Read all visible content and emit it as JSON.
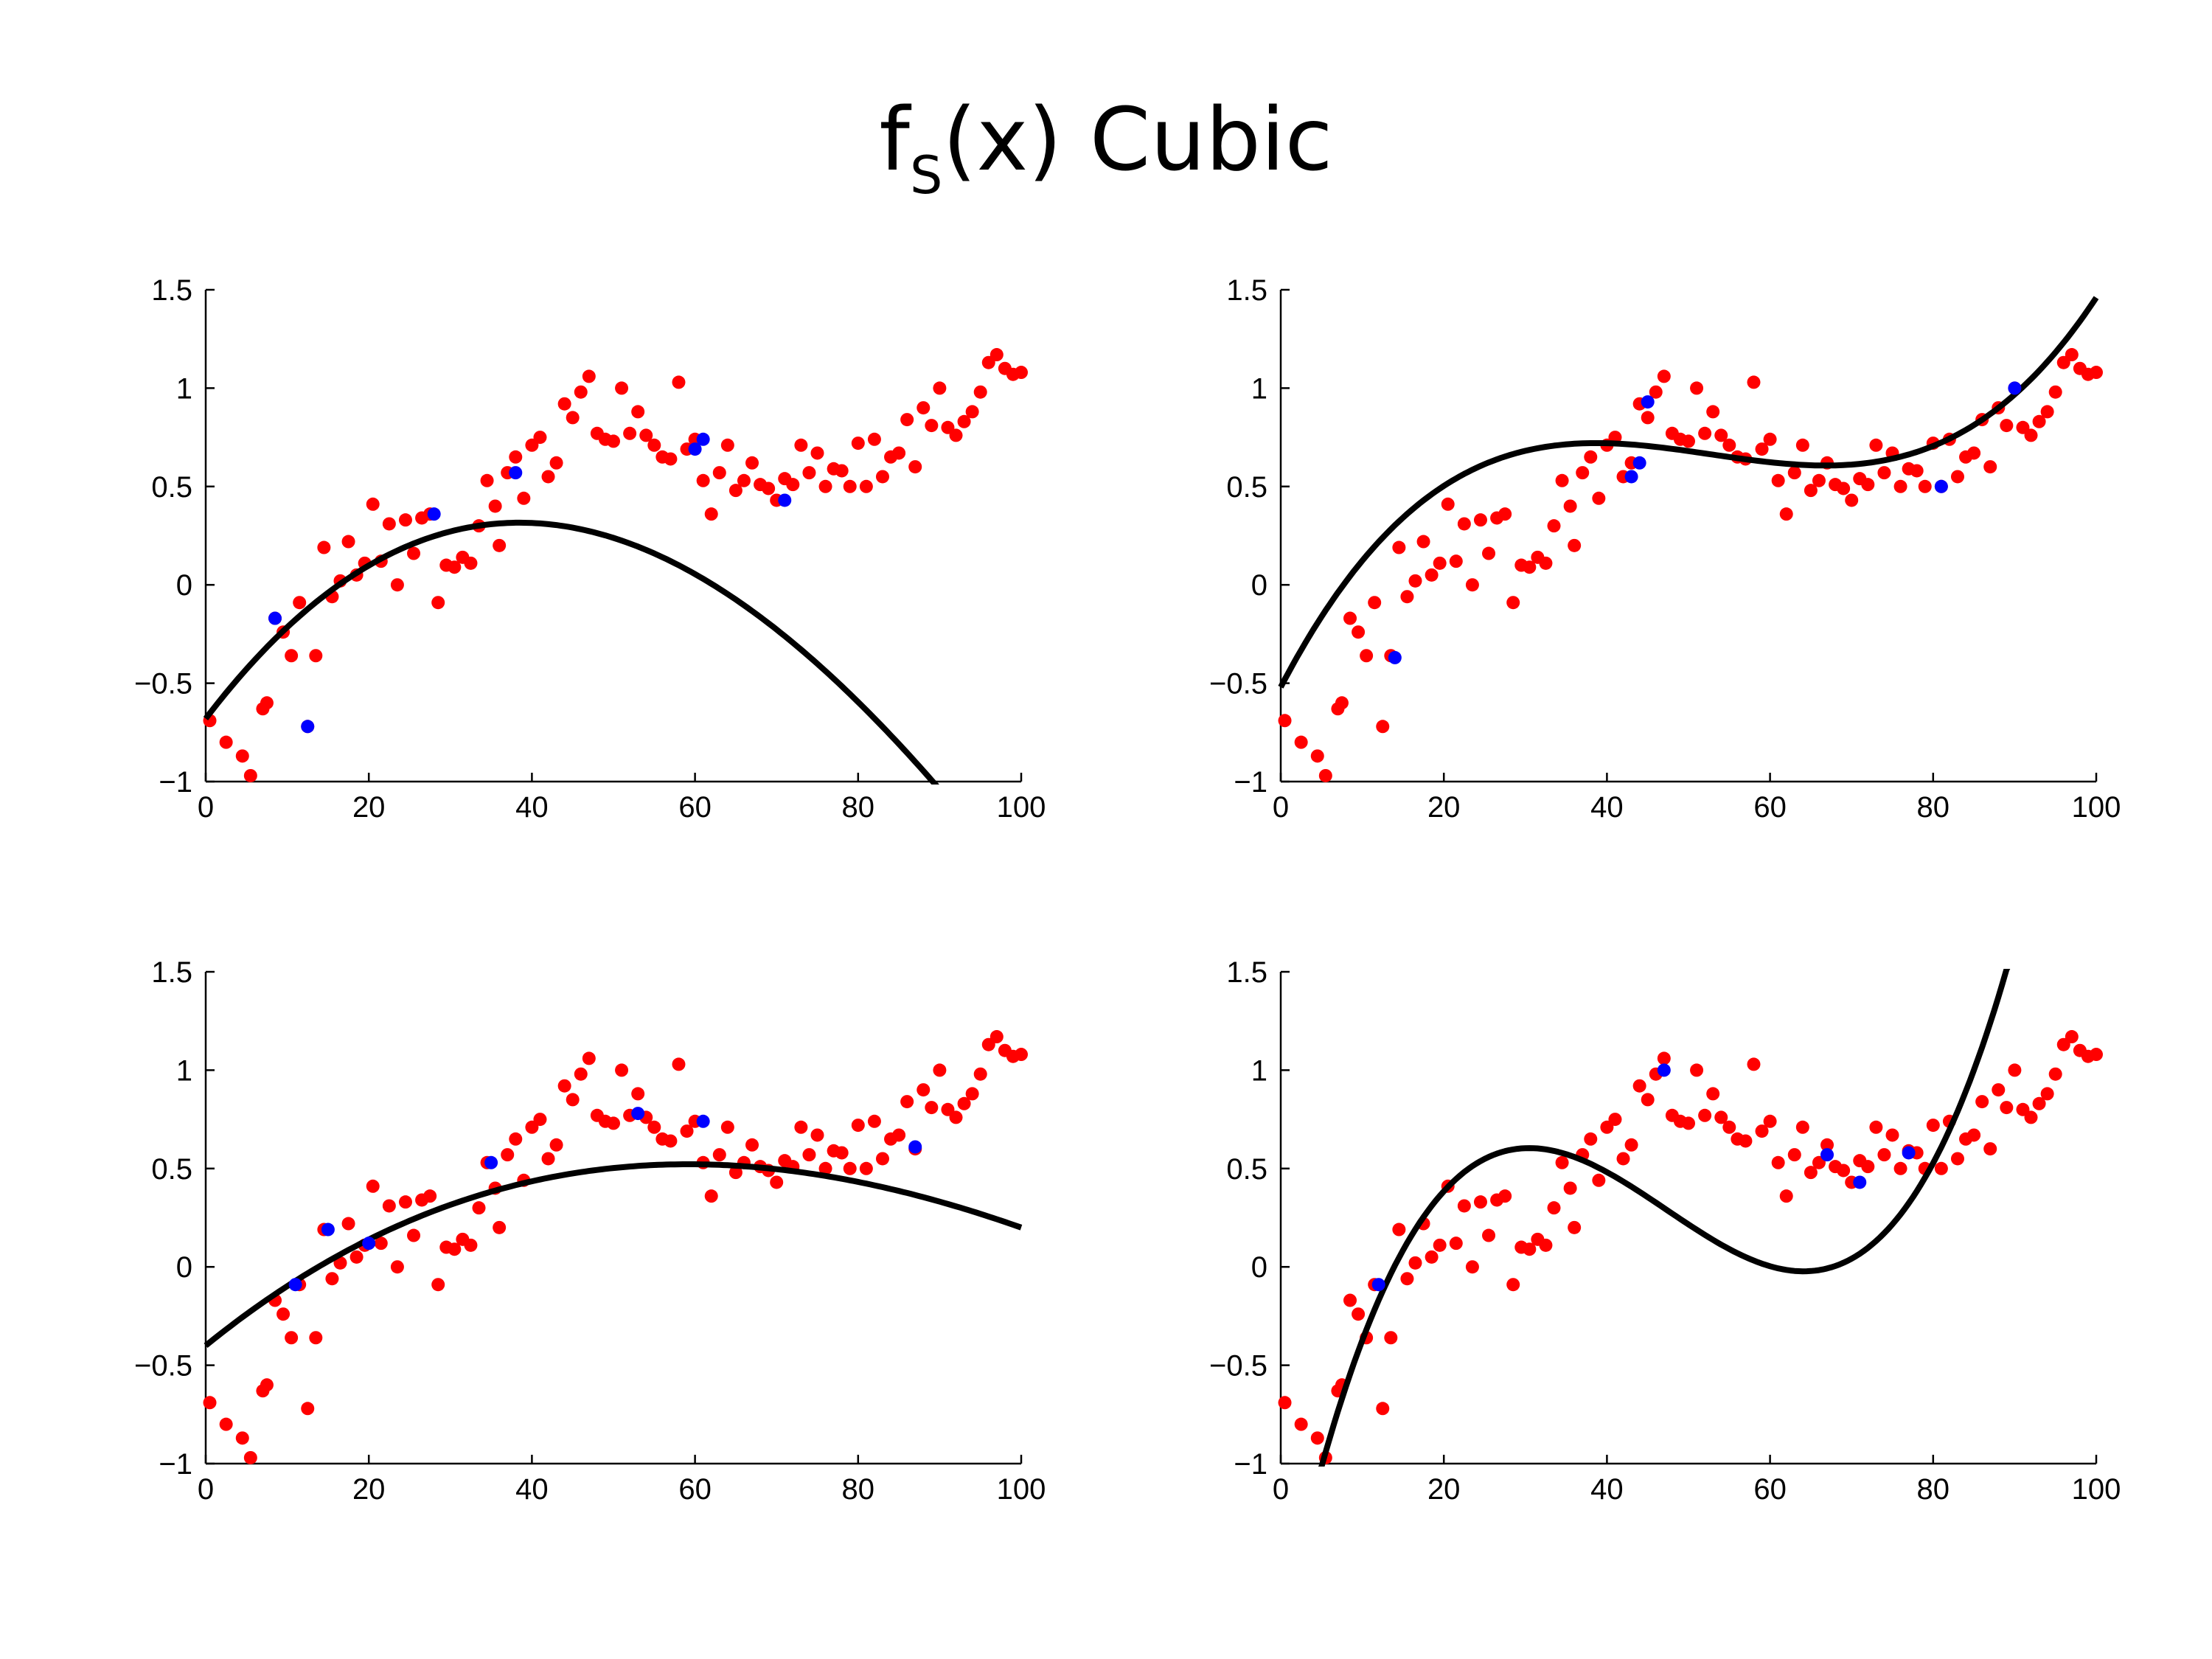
{
  "title": {
    "prefix": "f",
    "subscript": "S",
    "suffix": "(x) Cubic"
  },
  "colors": {
    "data": "#ff0000",
    "sample": "#0000ff",
    "curve": "#000000"
  },
  "chart_data": [
    {
      "type": "scatter",
      "xlim": [
        0,
        100
      ],
      "ylim": [
        -1,
        1.5
      ],
      "xticks": [
        0,
        20,
        40,
        60,
        80,
        100
      ],
      "yticks": [
        -1,
        -0.5,
        0,
        0.5,
        1,
        1.5
      ],
      "xtick_labels": [
        "0",
        "20",
        "40",
        "60",
        "80",
        "100"
      ],
      "ytick_labels": [
        "−1",
        "−0.5",
        "0",
        "0.5",
        "1",
        "1.5"
      ],
      "grid": false,
      "sample_points": [
        [
          8.5,
          -0.17
        ],
        [
          12.5,
          -0.72
        ],
        [
          28,
          0.36
        ],
        [
          38,
          0.57
        ],
        [
          60,
          0.69
        ],
        [
          61,
          0.74
        ],
        [
          71,
          0.43
        ]
      ],
      "fit": {
        "type": "cubic",
        "coeffs": [
          1.79e-06,
          -0.00081,
          0.0544,
          -0.68
        ]
      }
    },
    {
      "type": "scatter",
      "xlim": [
        0,
        100
      ],
      "ylim": [
        -1,
        1.5
      ],
      "xticks": [
        0,
        20,
        40,
        60,
        80,
        100
      ],
      "yticks": [
        -1,
        -0.5,
        0,
        0.5,
        1,
        1.5
      ],
      "xtick_labels": [
        "0",
        "20",
        "40",
        "60",
        "80",
        "100"
      ],
      "ytick_labels": [
        "−1",
        "−0.5",
        "0",
        "0.5",
        "1",
        "1.5"
      ],
      "grid": false,
      "sample_points": [
        [
          14,
          -0.37
        ],
        [
          43,
          0.55
        ],
        [
          44,
          0.62
        ],
        [
          45,
          0.93
        ],
        [
          81,
          0.5
        ],
        [
          90,
          1.0
        ]
      ],
      "fit": {
        "type": "cubic",
        "coeffs": [
          1.026e-05,
          -0.001623,
          0.0795,
          -0.52
        ]
      }
    },
    {
      "type": "scatter",
      "xlim": [
        0,
        100
      ],
      "ylim": [
        -1,
        1.5
      ],
      "xticks": [
        0,
        20,
        40,
        60,
        80,
        100
      ],
      "yticks": [
        -1,
        -0.5,
        0,
        0.5,
        1,
        1.5
      ],
      "xtick_labels": [
        "0",
        "20",
        "40",
        "60",
        "80",
        "100"
      ],
      "ytick_labels": [
        "−1",
        "−0.5",
        "0",
        "0.5",
        "1",
        "1.5"
      ],
      "grid": false,
      "sample_points": [
        [
          11,
          -0.09
        ],
        [
          15,
          0.19
        ],
        [
          20,
          0.12
        ],
        [
          35,
          0.53
        ],
        [
          53,
          0.78
        ],
        [
          61,
          0.74
        ],
        [
          87,
          0.61
        ]
      ],
      "fit": {
        "type": "cubic",
        "coeffs": [
          7e-07,
          -0.000346,
          0.0336,
          -0.4
        ]
      }
    },
    {
      "type": "scatter",
      "xlim": [
        0,
        100
      ],
      "ylim": [
        -1,
        1.5
      ],
      "xticks": [
        0,
        20,
        40,
        60,
        80,
        100
      ],
      "yticks": [
        -1,
        -0.5,
        0,
        0.5,
        1,
        1.5
      ],
      "xtick_labels": [
        "0",
        "20",
        "40",
        "60",
        "80",
        "100"
      ],
      "ytick_labels": [
        "−1",
        "−0.5",
        "0",
        "0.5",
        "1",
        "1.5"
      ],
      "grid": false,
      "sample_points": [
        [
          12,
          -0.09
        ],
        [
          47,
          1.0
        ],
        [
          67,
          0.57
        ],
        [
          71,
          0.43
        ],
        [
          77,
          0.58
        ]
      ],
      "fit": {
        "type": "cubic",
        "coeffs": [
          3.288e-05,
          -0.004665,
          0.1927,
          -1.8667
        ]
      }
    }
  ],
  "observed_data": [
    [
      0.5,
      -0.69
    ],
    [
      2.5,
      -0.8
    ],
    [
      4.5,
      -0.87
    ],
    [
      5.5,
      -0.97
    ],
    [
      7,
      -0.63
    ],
    [
      7.5,
      -0.6
    ],
    [
      8.5,
      -0.17
    ],
    [
      9.5,
      -0.24
    ],
    [
      10.5,
      -0.36
    ],
    [
      11.5,
      -0.09
    ],
    [
      12.5,
      -0.72
    ],
    [
      13.5,
      -0.36
    ],
    [
      14.5,
      0.19
    ],
    [
      15.5,
      -0.06
    ],
    [
      16.5,
      0.02
    ],
    [
      17.5,
      0.22
    ],
    [
      18.5,
      0.05
    ],
    [
      19.5,
      0.11
    ],
    [
      20.5,
      0.41
    ],
    [
      21.5,
      0.12
    ],
    [
      22.5,
      0.31
    ],
    [
      23.5,
      0.0
    ],
    [
      24.5,
      0.33
    ],
    [
      25.5,
      0.16
    ],
    [
      26.5,
      0.34
    ],
    [
      27.5,
      0.36
    ],
    [
      28.5,
      -0.09
    ],
    [
      29.5,
      0.1
    ],
    [
      30.5,
      0.09
    ],
    [
      31.5,
      0.14
    ],
    [
      32.5,
      0.11
    ],
    [
      33.5,
      0.3
    ],
    [
      34.5,
      0.53
    ],
    [
      35.5,
      0.4
    ],
    [
      36,
      0.2
    ],
    [
      37,
      0.57
    ],
    [
      38,
      0.65
    ],
    [
      39,
      0.44
    ],
    [
      40,
      0.71
    ],
    [
      41,
      0.75
    ],
    [
      42,
      0.55
    ],
    [
      43,
      0.62
    ],
    [
      44,
      0.92
    ],
    [
      45,
      0.85
    ],
    [
      46,
      0.98
    ],
    [
      47,
      1.06
    ],
    [
      48,
      0.77
    ],
    [
      49,
      0.74
    ],
    [
      50,
      0.73
    ],
    [
      51,
      1.0
    ],
    [
      52,
      0.77
    ],
    [
      53,
      0.88
    ],
    [
      54,
      0.76
    ],
    [
      55,
      0.71
    ],
    [
      56,
      0.65
    ],
    [
      57,
      0.64
    ],
    [
      58,
      1.03
    ],
    [
      59,
      0.69
    ],
    [
      60,
      0.74
    ],
    [
      61,
      0.53
    ],
    [
      62,
      0.36
    ],
    [
      63,
      0.57
    ],
    [
      64,
      0.71
    ],
    [
      65,
      0.48
    ],
    [
      66,
      0.53
    ],
    [
      67,
      0.62
    ],
    [
      68,
      0.51
    ],
    [
      69,
      0.49
    ],
    [
      70,
      0.43
    ],
    [
      71,
      0.54
    ],
    [
      72,
      0.51
    ],
    [
      73,
      0.71
    ],
    [
      74,
      0.57
    ],
    [
      75,
      0.67
    ],
    [
      76,
      0.5
    ],
    [
      77,
      0.59
    ],
    [
      78,
      0.58
    ],
    [
      79,
      0.5
    ],
    [
      80,
      0.72
    ],
    [
      81,
      0.5
    ],
    [
      82,
      0.74
    ],
    [
      83,
      0.55
    ],
    [
      84,
      0.65
    ],
    [
      85,
      0.67
    ],
    [
      86,
      0.84
    ],
    [
      87,
      0.6
    ],
    [
      88,
      0.9
    ],
    [
      89,
      0.81
    ],
    [
      90,
      1.0
    ],
    [
      91,
      0.8
    ],
    [
      92,
      0.76
    ],
    [
      93,
      0.83
    ],
    [
      94,
      0.88
    ],
    [
      95,
      0.98
    ],
    [
      96,
      1.13
    ],
    [
      97,
      1.17
    ],
    [
      98,
      1.1
    ],
    [
      99,
      1.07
    ],
    [
      100,
      1.08
    ]
  ]
}
